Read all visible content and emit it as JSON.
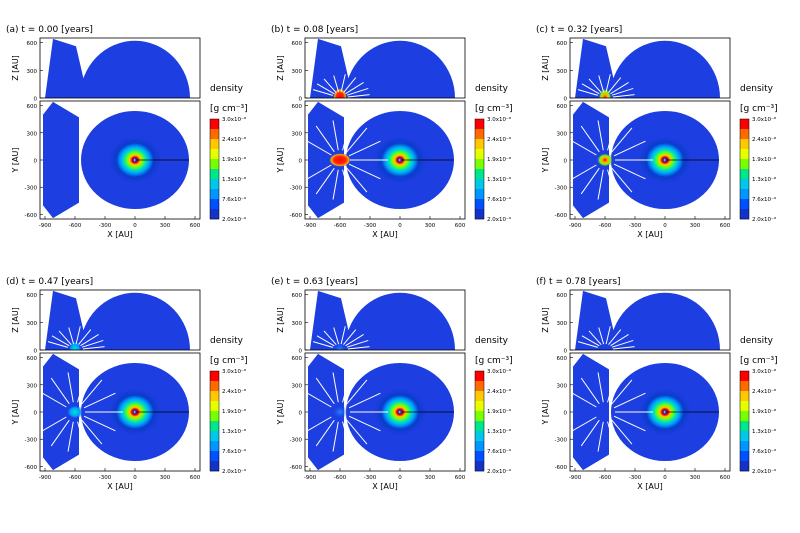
{
  "figure": {
    "legend_title": "density",
    "legend_unit": "[g cm⁻³]",
    "colorbar_labels": [
      "3.0x10⁻⁸",
      "2.4x10⁻⁸",
      "1.9x10⁻⁸",
      "1.3x10⁻⁸",
      "7.6x10⁻⁹",
      "2.0x10⁻⁹"
    ],
    "colorbar_colors": [
      "#ff0000",
      "#ff6a00",
      "#ffc800",
      "#e6ff00",
      "#78ff00",
      "#00e68c",
      "#00c8e6",
      "#0096ff",
      "#0050ff",
      "#1432c8"
    ],
    "colors": {
      "background_blob": "#1d3ee0",
      "vector_color": "#ffffff",
      "axis_color": "#000000"
    }
  },
  "chart_data": [
    {
      "type": "heatmap",
      "panel_label": "(a) t = 0.00 [years]",
      "xlabel": "X [AU]",
      "ylabel_top": "Z [AU]",
      "ylabel_bottom": "Y [AU]",
      "x_ticks": [
        "-900",
        "-600",
        "-300",
        "0",
        "300",
        "600"
      ],
      "z_ticks": [
        "600",
        "300",
        "0"
      ],
      "y_ticks": [
        "600",
        "300",
        "0",
        "-300",
        "-600"
      ],
      "xlim": [
        -950,
        650
      ],
      "zlim": [
        0,
        650
      ],
      "ylim": [
        -650,
        650
      ],
      "source_x_au": -600,
      "source_state": "none",
      "vectors": false
    },
    {
      "type": "heatmap",
      "panel_label": "(b) t = 0.08 [years]",
      "xlabel": "X [AU]",
      "ylabel_top": "Z [AU]",
      "ylabel_bottom": "Y [AU]",
      "x_ticks": [
        "-900",
        "-600",
        "-300",
        "0",
        "300",
        "600"
      ],
      "z_ticks": [
        "600",
        "300",
        "0"
      ],
      "y_ticks": [
        "600",
        "300",
        "0",
        "-300",
        "-600"
      ],
      "xlim": [
        -950,
        650
      ],
      "zlim": [
        0,
        650
      ],
      "ylim": [
        -650,
        650
      ],
      "source_x_au": -600,
      "source_state": "strong",
      "vectors": true
    },
    {
      "type": "heatmap",
      "panel_label": "(c) t = 0.32 [years]",
      "xlabel": "X [AU]",
      "ylabel_top": "Z [AU]",
      "ylabel_bottom": "Y [AU]",
      "x_ticks": [
        "-900",
        "-600",
        "-300",
        "0",
        "300",
        "600"
      ],
      "z_ticks": [
        "600",
        "300",
        "0"
      ],
      "y_ticks": [
        "600",
        "300",
        "0",
        "-300",
        "-600"
      ],
      "xlim": [
        -950,
        650
      ],
      "zlim": [
        0,
        650
      ],
      "ylim": [
        -650,
        650
      ],
      "source_x_au": -600,
      "source_state": "medium",
      "vectors": true
    },
    {
      "type": "heatmap",
      "panel_label": "(d) t = 0.47 [years]",
      "xlabel": "X [AU]",
      "ylabel_top": "Z [AU]",
      "ylabel_bottom": "Y [AU]",
      "x_ticks": [
        "-900",
        "-600",
        "-300",
        "0",
        "300",
        "600"
      ],
      "z_ticks": [
        "600",
        "300",
        "0"
      ],
      "y_ticks": [
        "600",
        "300",
        "0",
        "-300",
        "-600"
      ],
      "xlim": [
        -950,
        650
      ],
      "zlim": [
        0,
        650
      ],
      "ylim": [
        -650,
        650
      ],
      "source_x_au": -600,
      "source_state": "weak",
      "vectors": true
    },
    {
      "type": "heatmap",
      "panel_label": "(e) t = 0.63 [years]",
      "xlabel": "X [AU]",
      "ylabel_top": "Z [AU]",
      "ylabel_bottom": "Y [AU]",
      "x_ticks": [
        "-900",
        "-600",
        "-300",
        "0",
        "300",
        "600"
      ],
      "z_ticks": [
        "600",
        "300",
        "0"
      ],
      "y_ticks": [
        "600",
        "300",
        "0",
        "-300",
        "-600"
      ],
      "xlim": [
        -950,
        650
      ],
      "zlim": [
        0,
        650
      ],
      "ylim": [
        -650,
        650
      ],
      "source_x_au": -600,
      "source_state": "faint",
      "vectors": true
    },
    {
      "type": "heatmap",
      "panel_label": "(f) t = 0.78 [years]",
      "xlabel": "X [AU]",
      "ylabel_top": "Z [AU]",
      "ylabel_bottom": "Y [AU]",
      "x_ticks": [
        "-900",
        "-600",
        "-300",
        "0",
        "300",
        "600"
      ],
      "z_ticks": [
        "600",
        "300",
        "0"
      ],
      "y_ticks": [
        "600",
        "300",
        "0",
        "-300",
        "-600"
      ],
      "xlim": [
        -950,
        650
      ],
      "zlim": [
        0,
        650
      ],
      "ylim": [
        -650,
        650
      ],
      "source_x_au": -600,
      "source_state": "none",
      "vectors": true
    }
  ]
}
